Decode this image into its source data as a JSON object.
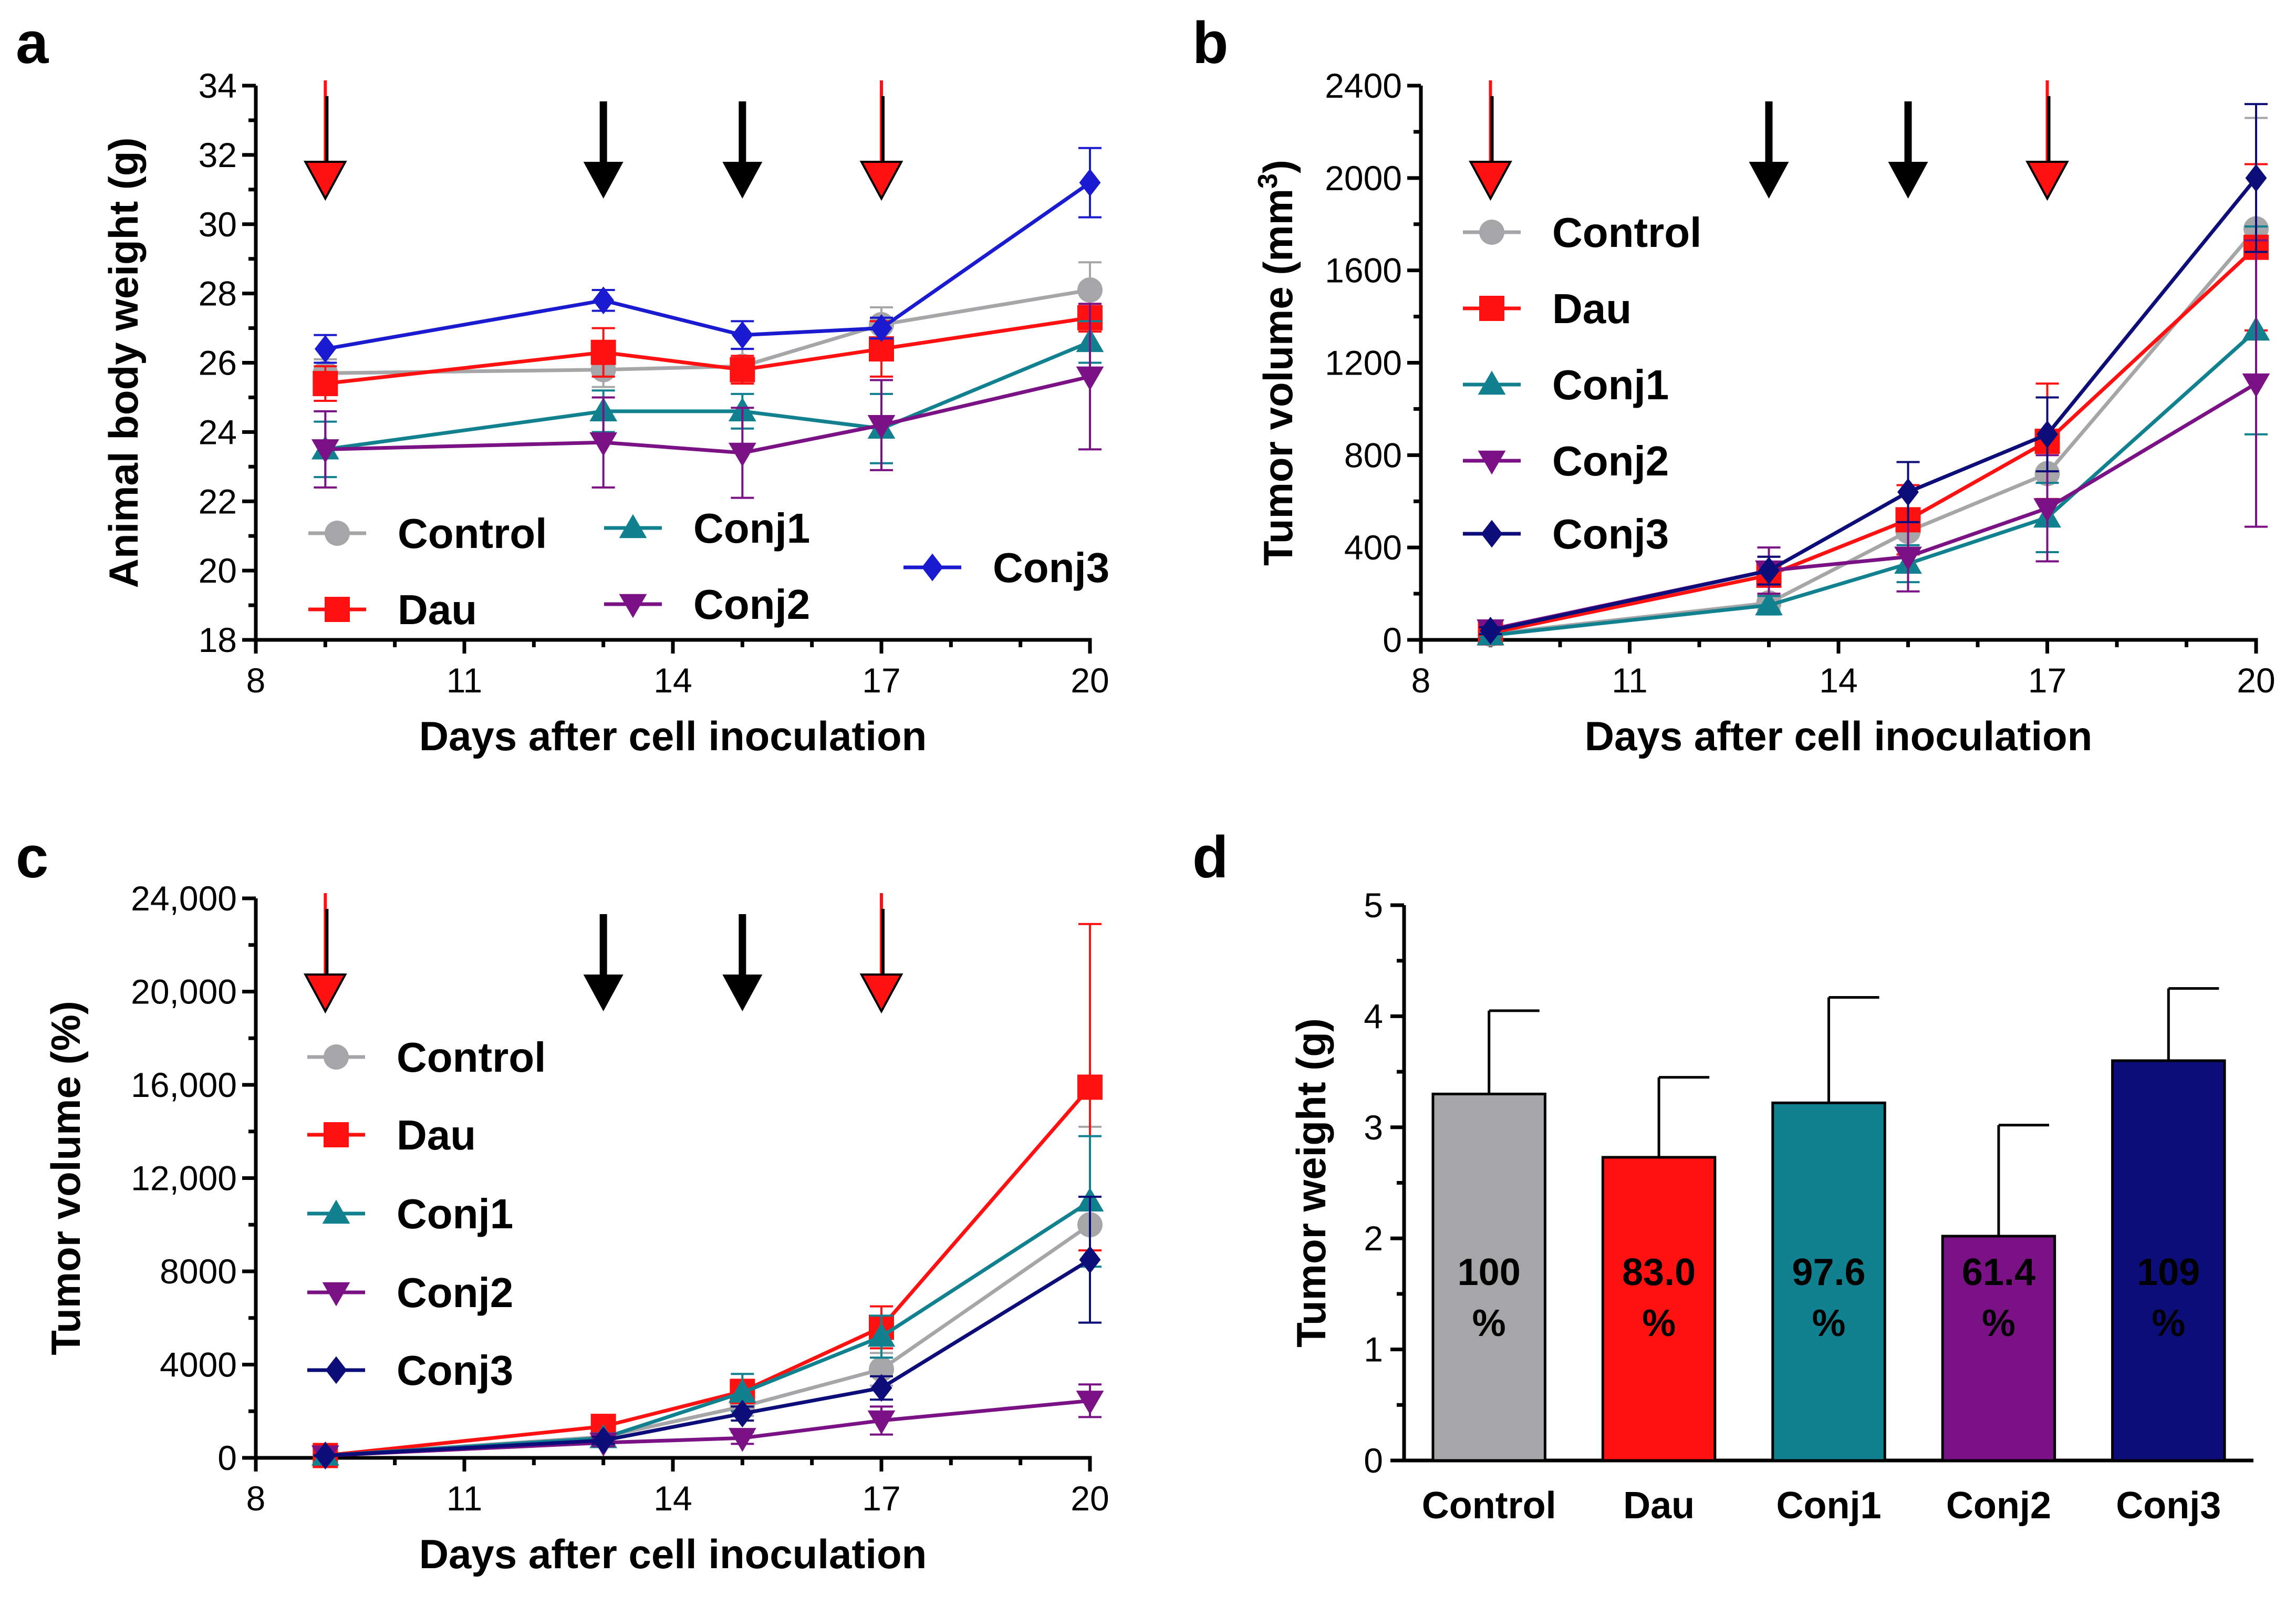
{
  "figure": {
    "panels": [
      "a",
      "b",
      "c",
      "d"
    ]
  },
  "colors": {
    "Control": "#a6a6a8",
    "Dau": "#ff1111",
    "Conj1": "#11818f",
    "Conj2": "#7a1185",
    "Conj3a": "#1a1ad0",
    "Conj3": "#0d0d7a",
    "arrow_black": "#000000",
    "arrow_red": "#ff1111"
  },
  "chart_data": [
    {
      "panel": "a",
      "type": "line",
      "xlabel": "Days after cell inoculation",
      "ylabel": "Animal body weight (g)",
      "xlim": [
        8,
        20
      ],
      "ylim": [
        18,
        34
      ],
      "xticks": [
        8,
        11,
        14,
        17,
        20
      ],
      "yticks": [
        18,
        20,
        22,
        24,
        26,
        28,
        30,
        32,
        34
      ],
      "arrows": [
        {
          "day": 9,
          "type": "red"
        },
        {
          "day": 13,
          "type": "black"
        },
        {
          "day": 15,
          "type": "black"
        },
        {
          "day": 17,
          "type": "red"
        }
      ],
      "x": [
        9,
        13,
        15,
        17,
        20
      ],
      "legend_placement": "lower-center",
      "series": [
        {
          "name": "Control",
          "marker": "circle",
          "color_key": "Control",
          "values": [
            25.7,
            25.8,
            25.9,
            27.1,
            28.1
          ],
          "errors": [
            0.4,
            0.5,
            0.5,
            0.5,
            0.8
          ]
        },
        {
          "name": "Dau",
          "marker": "square",
          "color_key": "Dau",
          "values": [
            25.4,
            26.3,
            25.8,
            26.4,
            27.3
          ],
          "errors": [
            0.5,
            0.7,
            0.4,
            0.8,
            0.4
          ]
        },
        {
          "name": "Conj1",
          "marker": "triangle-up",
          "color_key": "Conj1",
          "values": [
            23.5,
            24.6,
            24.6,
            24.1,
            26.6
          ],
          "errors": [
            0.8,
            0.6,
            0.5,
            1.0,
            0.6
          ]
        },
        {
          "name": "Conj2",
          "marker": "triangle-down",
          "color_key": "Conj2",
          "values": [
            23.5,
            23.7,
            23.4,
            24.2,
            25.6
          ],
          "errors": [
            1.1,
            1.3,
            1.3,
            1.3,
            2.1
          ]
        },
        {
          "name": "Conj3",
          "marker": "diamond",
          "color_key": "Conj3a",
          "values": [
            26.4,
            27.8,
            26.8,
            27.0,
            31.2
          ],
          "errors": [
            0.4,
            0.3,
            0.4,
            0.3,
            1.0
          ]
        }
      ]
    },
    {
      "panel": "b",
      "type": "line",
      "xlabel": "Days after cell inoculation",
      "ylabel": "Tumor volume (mm",
      "ylabel_sup": "3",
      "ylabel_end": ")",
      "xlim": [
        8,
        20
      ],
      "ylim": [
        0,
        2400
      ],
      "xticks": [
        8,
        11,
        14,
        17,
        20
      ],
      "yticks": [
        0,
        400,
        800,
        1200,
        1600,
        2000,
        2400
      ],
      "arrows": [
        {
          "day": 9,
          "type": "red"
        },
        {
          "day": 13,
          "type": "black"
        },
        {
          "day": 15,
          "type": "black"
        },
        {
          "day": 17,
          "type": "red"
        }
      ],
      "x": [
        9,
        13,
        15,
        17,
        20
      ],
      "legend_placement": "top-left",
      "series": [
        {
          "name": "Control",
          "marker": "circle",
          "color_key": "Control",
          "values": [
            25,
            160,
            470,
            720,
            1780
          ],
          "errors": [
            10,
            30,
            80,
            110,
            480
          ]
        },
        {
          "name": "Dau",
          "marker": "square",
          "color_key": "Dau",
          "values": [
            30,
            280,
            520,
            860,
            1700
          ],
          "errors": [
            10,
            80,
            150,
            250,
            360
          ]
        },
        {
          "name": "Conj1",
          "marker": "triangle-up",
          "color_key": "Conj1",
          "values": [
            20,
            150,
            330,
            530,
            1340
          ],
          "errors": [
            8,
            40,
            80,
            150,
            450
          ]
        },
        {
          "name": "Conj2",
          "marker": "triangle-down",
          "color_key": "Conj2",
          "values": [
            45,
            300,
            360,
            570,
            1110
          ],
          "errors": [
            20,
            100,
            150,
            230,
            620
          ]
        },
        {
          "name": "Conj3",
          "marker": "diamond",
          "color_key": "Conj3",
          "values": [
            40,
            300,
            640,
            890,
            2000
          ],
          "errors": [
            15,
            60,
            130,
            160,
            320
          ]
        }
      ]
    },
    {
      "panel": "c",
      "type": "line",
      "xlabel": "Days after cell inoculation",
      "ylabel": "Tumor volume (%)",
      "xlim": [
        8,
        20
      ],
      "ylim": [
        0,
        24000
      ],
      "xticks": [
        8,
        11,
        14,
        17,
        20
      ],
      "yticks": [
        0,
        4000,
        8000,
        12000,
        16000,
        20000,
        24000
      ],
      "ytick_labels": [
        "0",
        "4000",
        "8000",
        "12,000",
        "16,000",
        "20,000",
        "24,000"
      ],
      "arrows": [
        {
          "day": 9,
          "type": "red"
        },
        {
          "day": 13,
          "type": "black"
        },
        {
          "day": 15,
          "type": "black"
        },
        {
          "day": 17,
          "type": "red"
        }
      ],
      "x": [
        9,
        13,
        15,
        17,
        20
      ],
      "legend_placement": "top-left",
      "series": [
        {
          "name": "Control",
          "marker": "circle",
          "color_key": "Control",
          "values": [
            100,
            900,
            2200,
            3800,
            10000
          ],
          "errors": [
            20,
            200,
            400,
            700,
            4200
          ]
        },
        {
          "name": "Dau",
          "marker": "square",
          "color_key": "Dau",
          "values": [
            100,
            1350,
            2850,
            5600,
            15900
          ],
          "errors": [
            20,
            300,
            500,
            900,
            7000
          ]
        },
        {
          "name": "Conj1",
          "marker": "triangle-up",
          "color_key": "Conj1",
          "values": [
            100,
            850,
            2800,
            5200,
            11000
          ],
          "errors": [
            20,
            200,
            800,
            900,
            2800
          ]
        },
        {
          "name": "Conj2",
          "marker": "triangle-down",
          "color_key": "Conj2",
          "values": [
            100,
            650,
            850,
            1600,
            2450
          ],
          "errors": [
            20,
            150,
            250,
            600,
            700
          ]
        },
        {
          "name": "Conj3",
          "marker": "diamond",
          "color_key": "Conj3",
          "values": [
            100,
            750,
            1900,
            3000,
            8500
          ],
          "errors": [
            20,
            150,
            300,
            500,
            2700
          ]
        }
      ]
    },
    {
      "panel": "d",
      "type": "bar",
      "ylabel": "Tumor weight (g)",
      "ylim": [
        0,
        5
      ],
      "yticks": [
        0,
        1,
        2,
        3,
        4,
        5
      ],
      "categories": [
        "Control",
        "Dau",
        "Conj1",
        "Conj2",
        "Conj3"
      ],
      "values": [
        3.3,
        2.73,
        3.22,
        2.02,
        3.6
      ],
      "errors": [
        0.75,
        0.72,
        0.95,
        1.0,
        0.65
      ],
      "bar_labels": [
        [
          "100",
          "%"
        ],
        [
          "83.0",
          "%"
        ],
        [
          "97.6",
          "%"
        ],
        [
          "61.4",
          "%"
        ],
        [
          "109",
          "%"
        ]
      ],
      "color_keys": [
        "Control",
        "Dau",
        "Conj1",
        "Conj2",
        "Conj3"
      ]
    }
  ]
}
